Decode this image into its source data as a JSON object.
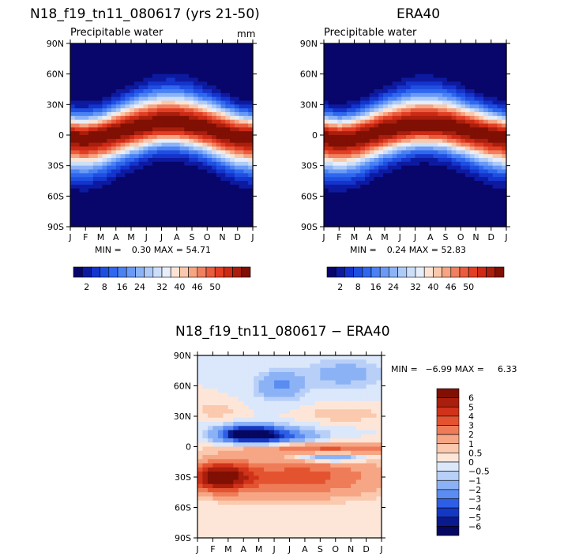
{
  "chart_data": [
    {
      "type": "heatmap",
      "title": "N18_f19_tn11_080617 (yrs 21-50)",
      "subtitle": "Precipitable water",
      "units": "mm",
      "xlabel": "",
      "ylabel": "",
      "x_ticks": [
        "J",
        "F",
        "M",
        "A",
        "M",
        "J",
        "J",
        "A",
        "S",
        "O",
        "N",
        "D",
        "J"
      ],
      "y_ticks": [
        "90N",
        "60N",
        "30N",
        "0",
        "30S",
        "60S",
        "90S"
      ],
      "ylim": [
        -90,
        90
      ],
      "min_label": "MIN =",
      "min": "0.30",
      "max_label": "MAX =",
      "max": "54.71",
      "colorbar_labels": [
        "2",
        "8",
        "16",
        "24",
        "32",
        "40",
        "46",
        "50"
      ],
      "colorbar_levels": [
        2,
        4,
        6,
        8,
        10,
        12,
        14,
        16,
        18,
        20,
        22,
        24,
        26,
        28,
        32,
        36,
        40,
        44,
        46,
        48,
        50,
        52
      ],
      "itcz_lat": [
        -2,
        -3,
        -1,
        3,
        7,
        10,
        12,
        12,
        10,
        7,
        3,
        -1,
        -2
      ],
      "peak_value": 54.71
    },
    {
      "type": "heatmap",
      "title": "ERA40",
      "subtitle": "Precipitable water",
      "x_ticks": [
        "J",
        "F",
        "M",
        "A",
        "M",
        "J",
        "J",
        "A",
        "S",
        "O",
        "N",
        "D",
        "J"
      ],
      "y_ticks": [
        "90N",
        "60N",
        "30N",
        "0",
        "30S",
        "60S",
        "90S"
      ],
      "ylim": [
        -90,
        90
      ],
      "min_label": "MIN =",
      "min": "0.24",
      "max_label": "MAX =",
      "max": "52.83",
      "colorbar_labels": [
        "2",
        "8",
        "16",
        "24",
        "32",
        "40",
        "46",
        "50"
      ],
      "itcz_lat": [
        -2,
        -4,
        -3,
        1,
        5,
        8,
        10,
        10,
        9,
        6,
        3,
        0,
        -2
      ],
      "peak_value": 52.83
    },
    {
      "type": "heatmap",
      "title": "N18_f19_tn11_080617 − ERA40",
      "x_ticks": [
        "J",
        "F",
        "M",
        "A",
        "M",
        "J",
        "J",
        "A",
        "S",
        "O",
        "N",
        "D",
        "J"
      ],
      "y_ticks": [
        "90N",
        "60N",
        "30N",
        "0",
        "30S",
        "60S",
        "90S"
      ],
      "ylim": [
        -90,
        90
      ],
      "min_label": "MIN =",
      "min": "−6.99",
      "max_label": "MAX =",
      "max": "6.33",
      "colorbar_labels": [
        "6",
        "5",
        "4",
        "3",
        "2",
        "1",
        "0.5",
        "0",
        "−0.5",
        "−1",
        "−2",
        "−3",
        "−4",
        "−5",
        "−6"
      ],
      "colorbar_levels": [
        -6,
        -5,
        -4,
        -3,
        -2,
        -1,
        -0.5,
        0,
        0.5,
        1,
        2,
        3,
        4,
        5,
        6
      ]
    }
  ],
  "colors": {
    "scale": [
      "#08066b",
      "#0d1aa0",
      "#1434cc",
      "#1f4fe0",
      "#2f68ee",
      "#4a82f4",
      "#6a9af6",
      "#8db3f7",
      "#aecbf8",
      "#cddff8",
      "#e6eefa",
      "#fbe4d5",
      "#fac8ac",
      "#f6a481",
      "#f08060",
      "#ea5c3e",
      "#e23e24",
      "#cc2a14",
      "#a91e0c",
      "#800f04"
    ],
    "axis": "#000000"
  }
}
